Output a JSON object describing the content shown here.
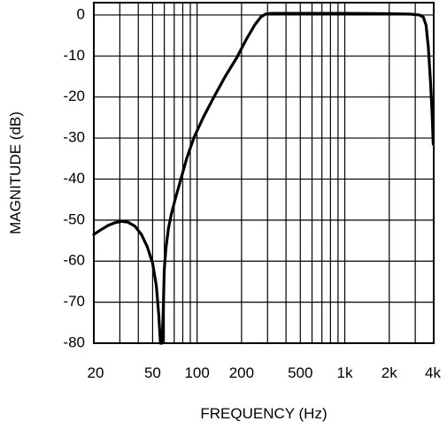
{
  "chart_data": {
    "type": "line",
    "title": "",
    "xlabel": "FREQUENCY (Hz)",
    "ylabel": "MAGNITUDE (dB)",
    "xscale": "log",
    "xlim": [
      20,
      4000
    ],
    "ylim": [
      -80,
      3
    ],
    "grid": true,
    "x_ticks": [
      {
        "value": 20,
        "label": "20"
      },
      {
        "value": 50,
        "label": "50"
      },
      {
        "value": 100,
        "label": "100"
      },
      {
        "value": 200,
        "label": "200"
      },
      {
        "value": 500,
        "label": "500"
      },
      {
        "value": 1000,
        "label": "1k"
      },
      {
        "value": 2000,
        "label": "2k"
      },
      {
        "value": 4000,
        "label": "4k"
      }
    ],
    "y_ticks": [
      {
        "value": 0,
        "label": "0"
      },
      {
        "value": -10,
        "label": "-10"
      },
      {
        "value": -20,
        "label": "-20"
      },
      {
        "value": -30,
        "label": "-30"
      },
      {
        "value": -40,
        "label": "-40"
      },
      {
        "value": -50,
        "label": "-50"
      },
      {
        "value": -60,
        "label": "-60"
      },
      {
        "value": -70,
        "label": "-70"
      },
      {
        "value": -80,
        "label": "-80"
      }
    ],
    "x_gridlines": [
      20,
      30,
      40,
      50,
      60,
      70,
      80,
      90,
      100,
      200,
      300,
      400,
      500,
      600,
      700,
      800,
      900,
      1000,
      2000,
      3000,
      4000
    ],
    "series": [
      {
        "color": "#000000",
        "points": [
          [
            20,
            -53.5
          ],
          [
            22,
            -52.5
          ],
          [
            25,
            -51.3
          ],
          [
            28,
            -50.6
          ],
          [
            31,
            -50.3
          ],
          [
            34,
            -50.5
          ],
          [
            38,
            -51.5
          ],
          [
            42,
            -53.5
          ],
          [
            46,
            -56.5
          ],
          [
            50,
            -60.5
          ],
          [
            53,
            -66
          ],
          [
            55,
            -73
          ],
          [
            56.5,
            -80
          ],
          [
            58,
            -80
          ],
          [
            59,
            -72
          ],
          [
            60,
            -62
          ],
          [
            61.5,
            -57
          ],
          [
            64,
            -52
          ],
          [
            67,
            -48.5
          ],
          [
            71,
            -45
          ],
          [
            77,
            -40.5
          ],
          [
            85,
            -35
          ],
          [
            95,
            -30
          ],
          [
            110,
            -25
          ],
          [
            130,
            -20
          ],
          [
            155,
            -15
          ],
          [
            185,
            -10.5
          ],
          [
            215,
            -6
          ],
          [
            245,
            -2.5
          ],
          [
            270,
            -0.5
          ],
          [
            290,
            0.2
          ],
          [
            320,
            0.4
          ],
          [
            500,
            0.4
          ],
          [
            1000,
            0.4
          ],
          [
            2000,
            0.3
          ],
          [
            2800,
            0.2
          ],
          [
            3200,
            0
          ],
          [
            3400,
            -0.5
          ],
          [
            3550,
            -2.5
          ],
          [
            3680,
            -8
          ],
          [
            3800,
            -16
          ],
          [
            3900,
            -24
          ],
          [
            3970,
            -31.5
          ]
        ]
      }
    ]
  }
}
